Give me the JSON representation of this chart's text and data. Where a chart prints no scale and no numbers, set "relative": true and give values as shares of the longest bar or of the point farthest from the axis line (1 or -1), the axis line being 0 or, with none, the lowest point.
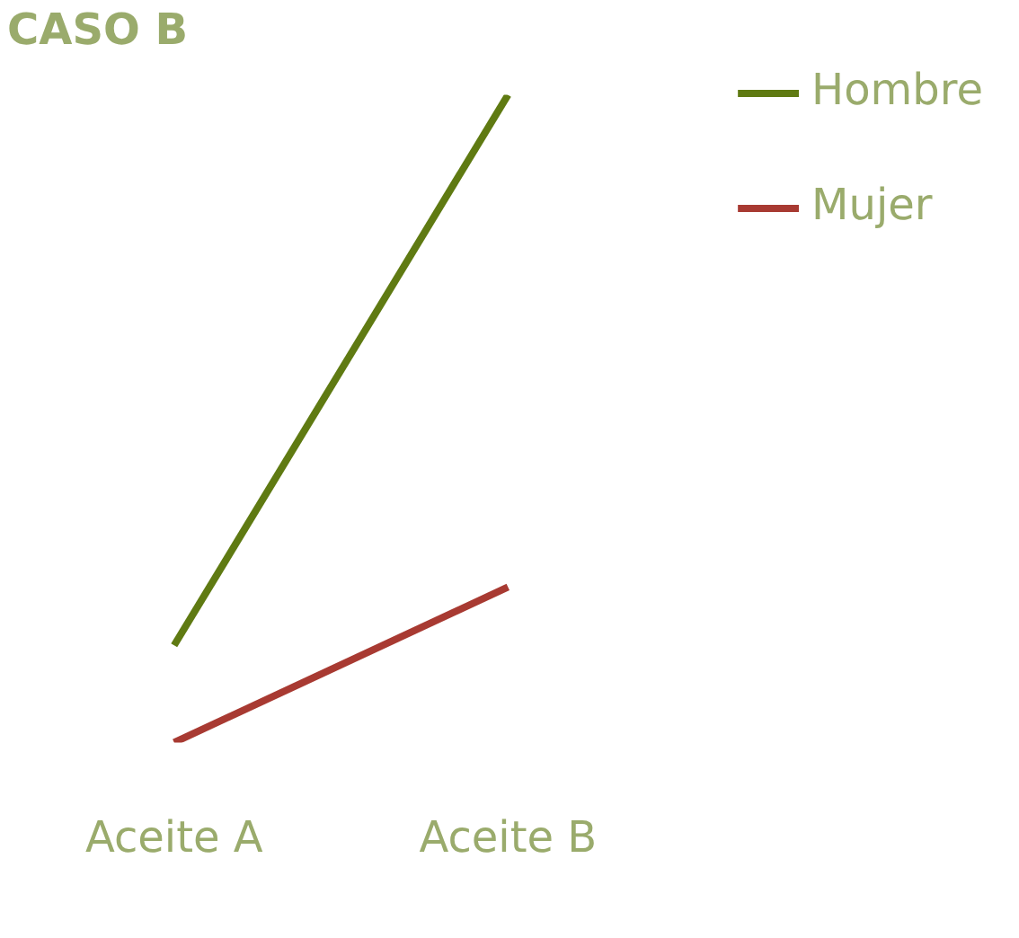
{
  "chart_data": {
    "type": "line",
    "title": "CASO B",
    "relative": true,
    "legend": "top right",
    "grid": false,
    "categories": [
      "Aceite A",
      "Aceite B"
    ],
    "series": [
      {
        "name": "Hombre",
        "color": "#5f7a12",
        "values": [
          0.15,
          1
        ]
      },
      {
        "name": "Mujer",
        "color": "#a83a32",
        "values": [
          0,
          0.24
        ]
      }
    ]
  }
}
